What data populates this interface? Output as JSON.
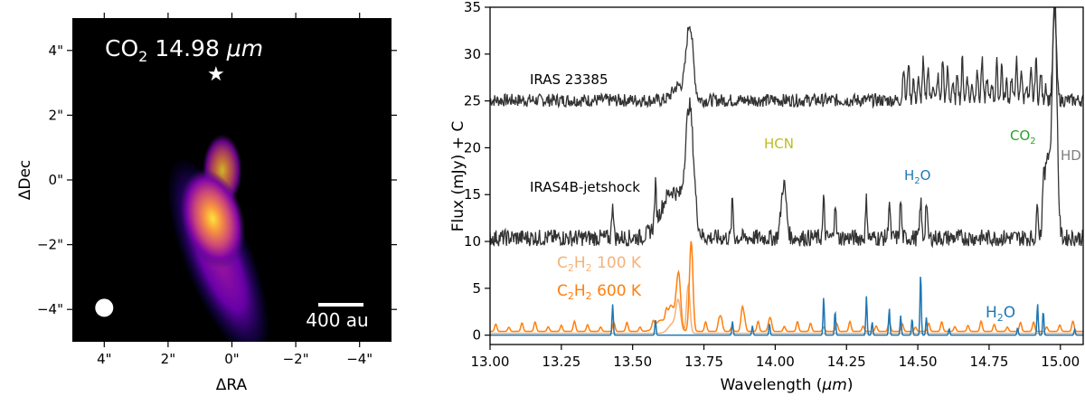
{
  "chart_data": [
    {
      "type": "heatmap",
      "panel": "left",
      "title_parts": [
        "CO",
        "2",
        " 14.98 ",
        "μm"
      ],
      "xlabel": "ΔRA",
      "ylabel": "ΔDec",
      "xlim": [
        5,
        -5
      ],
      "ylim": [
        -5,
        5
      ],
      "xticks": [
        4,
        2,
        0,
        -2,
        -4
      ],
      "xtick_labels": [
        "4\"",
        "2\"",
        "0\"",
        "−2\"",
        "−4\""
      ],
      "yticks": [
        4,
        2,
        0,
        -2,
        -4
      ],
      "ytick_labels": [
        "4\"",
        "2\"",
        "0\"",
        "−2\"",
        "−4\""
      ],
      "colormap": "plasma-like (black → purple → magenta → orange → yellow)",
      "background_color": "#000000",
      "emission_peak": {
        "x": 0.6,
        "y": -1.2
      },
      "star_marker": {
        "x": 0.5,
        "y": 3.3,
        "symbol": "★"
      },
      "beam_marker": {
        "x": 4.0,
        "y": -3.95,
        "shape": "circle",
        "color": "#ffffff"
      },
      "scalebar_label": "400 au"
    },
    {
      "type": "line",
      "panel": "right",
      "xlabel_parts": [
        "Wavelength (",
        "μm",
        ")"
      ],
      "ylabel": "Flux (mJy) + C",
      "xlim": [
        13.0,
        15.08
      ],
      "ylim": [
        -1,
        35
      ],
      "xticks": [
        13.0,
        13.25,
        13.5,
        13.75,
        14.0,
        14.25,
        14.5,
        14.75,
        15.0
      ],
      "xtick_labels": [
        "13.00",
        "13.25",
        "13.50",
        "13.75",
        "14.00",
        "14.25",
        "14.50",
        "14.75",
        "15.00"
      ],
      "yticks": [
        0,
        5,
        10,
        15,
        20,
        25,
        30,
        35
      ],
      "ytick_labels": [
        "0",
        "5",
        "10",
        "15",
        "20",
        "25",
        "30",
        "35"
      ],
      "series": [
        {
          "name": "IRAS 23385",
          "color": "#333333",
          "baseline": 25,
          "noise": 0.7,
          "features": [
            {
              "x": 13.7,
              "height": 8.0,
              "width": 0.012
            },
            {
              "x": 13.66,
              "height": 1.5,
              "width": 0.02
            },
            {
              "x": 14.98,
              "height": 9.5,
              "width": 0.006
            }
          ],
          "periodic_lines": {
            "start": 14.45,
            "end": 14.96,
            "step": 0.0172,
            "height": 4.5,
            "width": 0.003
          }
        },
        {
          "name": "IRAS4B-jetshock",
          "color": "#333333",
          "baseline": 10.3,
          "noise": 0.9,
          "features": [
            {
              "x": 13.7,
              "height": 12.5,
              "width": 0.014
            },
            {
              "x": 13.64,
              "height": 5.0,
              "width": 0.04
            },
            {
              "x": 14.03,
              "height": 5.8,
              "width": 0.009
            },
            {
              "x": 14.98,
              "height": 25.5,
              "width": 0.008
            },
            {
              "x": 14.955,
              "height": 9.0,
              "width": 0.01
            }
          ],
          "h2o_lines": [
            13.43,
            13.58,
            13.85,
            14.17,
            14.21,
            14.32,
            14.4,
            14.44,
            14.51,
            14.53,
            14.92,
            14.94
          ],
          "h2o_height": 4.0
        },
        {
          "name": "C2H2 100 K",
          "color": "#f5b27a",
          "baseline": 0.2,
          "features": [
            {
              "x": 13.695,
              "height": 5.2,
              "width": 0.006
            },
            {
              "x": 13.66,
              "height": 3.2,
              "width": 0.008
            },
            {
              "x": 13.64,
              "height": 1.0,
              "width": 0.015
            }
          ]
        },
        {
          "name": "C2H2 600 K",
          "color": "#ff7f0e",
          "baseline": 0.4,
          "features": [
            {
              "x": 13.705,
              "height": 9.4,
              "width": 0.006
            },
            {
              "x": 13.66,
              "height": 5.8,
              "width": 0.008
            },
            {
              "x": 13.635,
              "height": 2.5,
              "width": 0.01
            },
            {
              "x": 13.6,
              "height": 1.2,
              "width": 0.02
            },
            {
              "x": 13.885,
              "height": 2.6,
              "width": 0.005
            },
            {
              "x": 13.81,
              "height": 1.5,
              "width": 0.005
            },
            {
              "x": 13.98,
              "height": 1.2,
              "width": 0.005
            }
          ],
          "periodic_lines": {
            "start": 13.02,
            "end": 15.06,
            "step": 0.046,
            "height": 1.1,
            "width": 0.004
          }
        },
        {
          "name": "H2O",
          "color": "#1f77b4",
          "baseline": 0.0,
          "lines": [
            {
              "x": 13.43,
              "height": 3.3
            },
            {
              "x": 13.58,
              "height": 1.6
            },
            {
              "x": 13.85,
              "height": 1.5
            },
            {
              "x": 13.92,
              "height": 1.0
            },
            {
              "x": 13.98,
              "height": 1.2
            },
            {
              "x": 14.17,
              "height": 4.1
            },
            {
              "x": 14.21,
              "height": 2.6
            },
            {
              "x": 14.32,
              "height": 4.2
            },
            {
              "x": 14.34,
              "height": 1.4
            },
            {
              "x": 14.4,
              "height": 2.9
            },
            {
              "x": 14.44,
              "height": 2.1
            },
            {
              "x": 14.48,
              "height": 1.8
            },
            {
              "x": 14.51,
              "height": 6.7
            },
            {
              "x": 14.53,
              "height": 1.9
            },
            {
              "x": 14.61,
              "height": 0.7
            },
            {
              "x": 14.85,
              "height": 0.8
            },
            {
              "x": 14.92,
              "height": 3.4
            },
            {
              "x": 14.94,
              "height": 2.6
            },
            {
              "x": 15.05,
              "height": 0.6
            }
          ]
        }
      ],
      "annotations": {
        "iras23385": "IRAS 23385",
        "iras4b": "IRAS4B-jetshock",
        "hcn": "HCN",
        "h2o_upper": [
          "H",
          "2",
          "O"
        ],
        "co2": [
          "CO",
          "2"
        ],
        "hd": "HD",
        "c2h2_100": [
          "C",
          "2",
          "H",
          "2",
          " 100 K"
        ],
        "c2h2_600": [
          "C",
          "2",
          "H",
          "2",
          " 600 K"
        ],
        "h2o_lower": [
          "H",
          "2",
          "O"
        ]
      },
      "colors": {
        "hcn": "#bcbd22",
        "h2o": "#1f77b4",
        "co2": "#2ca02c",
        "hd": "#7f7f7f",
        "c2h2_100": "#f5b27a",
        "c2h2_600": "#ff7f0e",
        "spectrum": "#333333"
      }
    }
  ]
}
